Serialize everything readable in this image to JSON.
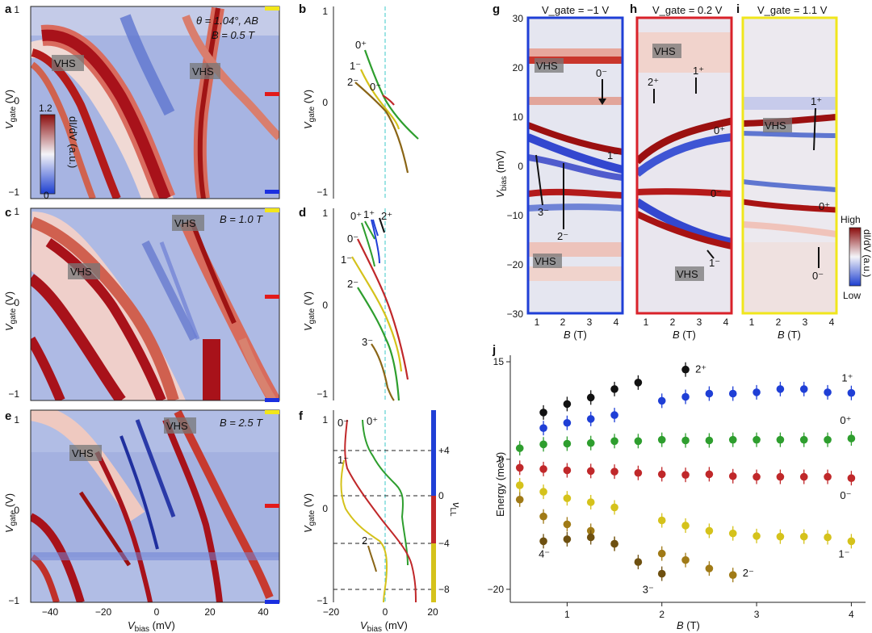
{
  "figure": {
    "panel_letters": [
      "a",
      "b",
      "c",
      "d",
      "e",
      "f",
      "g",
      "h",
      "i",
      "j"
    ],
    "axis_labels": {
      "vgate": "V",
      "vgate_sub": "gate",
      "vgate_unit": " (V)",
      "vbias": "V",
      "vbias_sub": "bias",
      "vbias_unit": " (mV)",
      "b_field": "B",
      "b_unit": " (T)",
      "energy": "Energy (meV)",
      "nu_l": "ν",
      "nu_l_sub": "LL"
    },
    "colorbar_a": {
      "max": "1.2",
      "min": "0",
      "label": "dI/dV (a.u.)"
    },
    "colorbar_gi": {
      "high": "High",
      "low": "Low",
      "label": "dI/dV (a.u.)"
    },
    "annotations_a": {
      "theta_line": "θ = 1.04°, AB",
      "field": "B = 0.5 T",
      "vhs_1": "VHS",
      "vhs_2": "VHS"
    },
    "annotations_c": {
      "field": "B = 1.0 T",
      "vhs_1": "VHS",
      "vhs_2": "VHS"
    },
    "annotations_e": {
      "field": "B = 2.5 T",
      "vhs_1": "VHS",
      "vhs_2": "VHS"
    },
    "titles_ghi": {
      "g": "V_gate = −1 V",
      "h": "V_gate = 0.2 V",
      "i": "V_gate = 1.1 V"
    },
    "ticks_vgate": [
      "1",
      "0",
      "−1"
    ],
    "ticks_vbias_ace": [
      "−40",
      "−20",
      "0",
      "20",
      "40"
    ],
    "ticks_vbias_bdf": [
      "−20",
      "0",
      "20"
    ],
    "ticks_vbias_ghi": [
      "30",
      "20",
      "10",
      "0",
      "−10",
      "−20",
      "−30"
    ],
    "ticks_b_ghi": [
      "1",
      "2",
      "3",
      "4"
    ],
    "ticks_nu_f": [
      "+4",
      "0",
      "−4",
      "−8"
    ],
    "labels_b": [
      "0⁺",
      "1⁻",
      "0⁻",
      "2⁻"
    ],
    "labels_d": [
      "0⁺",
      "1⁺",
      "2⁺",
      "0⁻",
      "1⁻",
      "2⁻",
      "3⁻"
    ],
    "labels_f": [
      "0⁻",
      "0⁺",
      "1⁻",
      "2⁻"
    ],
    "labels_g": [
      "VHS",
      "0⁻",
      "1⁻",
      "3⁻",
      "2⁻",
      "VHS"
    ],
    "labels_h": [
      "VHS",
      "2⁺",
      "1⁺",
      "0⁺",
      "0⁻",
      "1⁻",
      "VHS"
    ],
    "labels_i": [
      "VHS",
      "1⁺",
      "0⁺",
      "0⁻"
    ],
    "colors": {
      "red": "#c0282a",
      "blue": "#1f3fd6",
      "green": "#2e9e2e",
      "yellow": "#d5c21b",
      "brown": "#8a6516",
      "black": "#111111",
      "orange_brown": "#a07a16",
      "cyan": "#3cc8c8"
    }
  },
  "chart_data": [
    {
      "panel": "j",
      "type": "scatter",
      "xlabel": "B (T)",
      "ylabel": "Energy (meV)",
      "xlim": [
        0.4,
        4.15
      ],
      "ylim": [
        -22,
        16
      ],
      "xticks": [
        "1",
        "2",
        "3",
        "4"
      ],
      "yticks": [
        "15",
        "0",
        "−20"
      ],
      "series": [
        {
          "name": "2⁺",
          "color": "#111111",
          "x": [
            0.75,
            1.0,
            1.25,
            1.5,
            1.75,
            2.25
          ],
          "y": [
            7.2,
            8.5,
            9.5,
            10.8,
            11.8,
            13.8
          ]
        },
        {
          "name": "1⁺",
          "color": "#1f3fd6",
          "x": [
            0.75,
            1.0,
            1.25,
            1.5,
            2.0,
            2.25,
            2.5,
            2.75,
            3.0,
            3.25,
            3.5,
            3.75,
            4.0
          ],
          "y": [
            4.8,
            5.6,
            6.2,
            6.8,
            9.0,
            9.6,
            10.1,
            10.1,
            10.3,
            10.8,
            10.8,
            10.3,
            10.2
          ]
        },
        {
          "name": "0⁺",
          "color": "#2e9e2e",
          "x": [
            0.5,
            0.75,
            1.0,
            1.25,
            1.5,
            1.75,
            2.0,
            2.25,
            2.5,
            2.75,
            3.0,
            3.25,
            3.5,
            3.75,
            4.0
          ],
          "y": [
            1.7,
            2.3,
            2.4,
            2.5,
            2.8,
            2.8,
            3.0,
            2.9,
            2.9,
            3.0,
            3.0,
            3.0,
            3.0,
            3.0,
            3.2
          ]
        },
        {
          "name": "0⁻",
          "color": "#c0282a",
          "x": [
            0.5,
            0.75,
            1.0,
            1.25,
            1.5,
            1.75,
            2.0,
            2.25,
            2.5,
            2.75,
            3.0,
            3.25,
            3.5,
            3.75,
            4.0
          ],
          "y": [
            -1.3,
            -1.5,
            -1.7,
            -1.8,
            -1.9,
            -2.1,
            -2.3,
            -2.4,
            -2.3,
            -2.6,
            -2.7,
            -2.7,
            -2.7,
            -2.7,
            -2.9
          ]
        },
        {
          "name": "1⁻",
          "color": "#d5c21b",
          "x": [
            0.5,
            0.75,
            1.0,
            1.25,
            1.5,
            2.0,
            2.25,
            2.5,
            2.75,
            3.0,
            3.25,
            3.5,
            3.75,
            4.0
          ],
          "y": [
            -4.0,
            -5.0,
            -6.0,
            -6.6,
            -7.4,
            -9.4,
            -10.2,
            -11.0,
            -11.4,
            -11.8,
            -11.9,
            -11.9,
            -12.0,
            -12.6
          ]
        },
        {
          "name": "2⁻",
          "color": "#a07a16",
          "x": [
            0.5,
            0.75,
            1.0,
            1.25,
            1.5,
            2.0,
            2.25,
            2.5,
            2.75
          ],
          "y": [
            -6.2,
            -8.8,
            -10.0,
            -11.0,
            -13.0,
            -14.5,
            -15.5,
            -16.8,
            -17.8
          ]
        },
        {
          "name": "4⁻",
          "color": "#6e5010",
          "x": [
            0.75,
            1.0,
            1.25
          ],
          "y": [
            -12.6,
            -12.3,
            -12.0
          ]
        },
        {
          "name": "3⁻",
          "color": "#6e5010",
          "x": [
            1.5,
            1.75,
            2.0
          ],
          "y": [
            -13.0,
            -15.8,
            -17.6
          ]
        }
      ]
    }
  ]
}
